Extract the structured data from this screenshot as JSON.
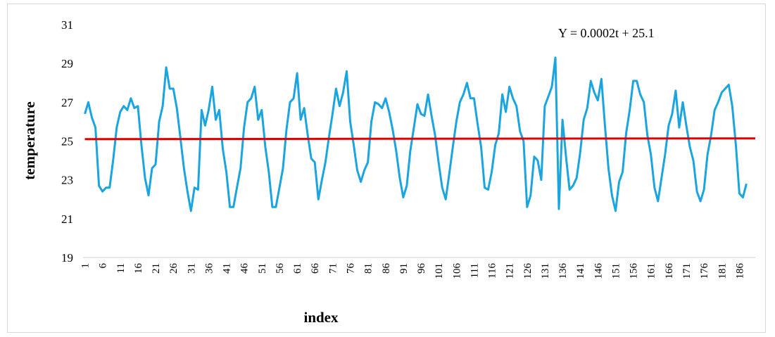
{
  "chart_data": {
    "type": "line",
    "title": "",
    "xlabel": "index",
    "ylabel": "temperature",
    "ylim": [
      19,
      31
    ],
    "yticks": [
      19,
      21,
      23,
      25,
      27,
      29,
      31
    ],
    "xtick_labels": [
      "1",
      "6",
      "11",
      "16",
      "21",
      "26",
      "31",
      "36",
      "41",
      "46",
      "51",
      "56",
      "61",
      "66",
      "71",
      "76",
      "81",
      "86",
      "91",
      "96",
      "101",
      "106",
      "111",
      "116",
      "121",
      "126",
      "131",
      "136",
      "141",
      "146",
      "151",
      "156",
      "161",
      "166",
      "171",
      "176",
      "181",
      "186"
    ],
    "grid": false,
    "legend": "none",
    "annotation": "Y = 0.0002t  + 25.1",
    "trend": {
      "slope": 0.0002,
      "intercept": 25.1,
      "color": "#e00000"
    },
    "series": [
      {
        "color": "#1aa5e0",
        "x_start": 1,
        "values": [
          26.4,
          27.0,
          26.2,
          25.7,
          22.7,
          22.4,
          22.6,
          22.6,
          24.0,
          25.7,
          26.5,
          26.8,
          26.6,
          27.2,
          26.7,
          26.8,
          24.8,
          23.1,
          22.2,
          23.6,
          23.8,
          26.0,
          26.8,
          28.8,
          27.7,
          27.7,
          26.7,
          25.2,
          23.6,
          22.4,
          21.4,
          22.6,
          22.5,
          26.6,
          25.8,
          26.6,
          27.8,
          26.1,
          26.6,
          24.6,
          23.4,
          21.6,
          21.6,
          22.6,
          23.6,
          25.7,
          27.0,
          27.2,
          27.8,
          26.1,
          26.6,
          24.7,
          23.4,
          21.6,
          21.6,
          22.6,
          23.6,
          25.6,
          27.0,
          27.2,
          28.5,
          26.1,
          26.7,
          25.3,
          24.1,
          23.9,
          22.0,
          23.0,
          23.9,
          25.2,
          26.4,
          27.7,
          26.8,
          27.5,
          28.6,
          26.0,
          24.8,
          23.5,
          22.9,
          23.5,
          23.9,
          26.0,
          27.0,
          26.9,
          26.7,
          27.2,
          26.5,
          25.6,
          24.5,
          23.1,
          22.1,
          22.7,
          24.5,
          25.7,
          26.9,
          26.4,
          26.3,
          27.4,
          26.3,
          25.3,
          23.9,
          22.6,
          22.0,
          23.3,
          24.7,
          26.0,
          27.0,
          27.4,
          28.0,
          27.2,
          27.2,
          25.9,
          24.7,
          22.6,
          22.5,
          23.4,
          24.8,
          25.4,
          27.4,
          26.5,
          27.8,
          27.2,
          26.8,
          25.5,
          25.0,
          21.6,
          22.2,
          24.2,
          24.0,
          23.0,
          26.8,
          27.3,
          27.8,
          29.3,
          21.5,
          26.1,
          24.2,
          22.5,
          22.7,
          23.1,
          24.4,
          26.1,
          26.7,
          28.1,
          27.5,
          27.1,
          28.2,
          25.8,
          23.6,
          22.2,
          21.4,
          22.9,
          23.4,
          25.4,
          26.6,
          28.1,
          28.1,
          27.4,
          27.0,
          25.3,
          24.3,
          22.6,
          21.9,
          23.1,
          24.3,
          25.8,
          26.4,
          27.6,
          25.7,
          27.0,
          25.8,
          24.7,
          24.0,
          22.4,
          21.9,
          22.5,
          24.3,
          25.3,
          26.6,
          27.0,
          27.5,
          27.7,
          27.9,
          26.8,
          24.8,
          22.3,
          22.1,
          22.8
        ]
      }
    ]
  }
}
